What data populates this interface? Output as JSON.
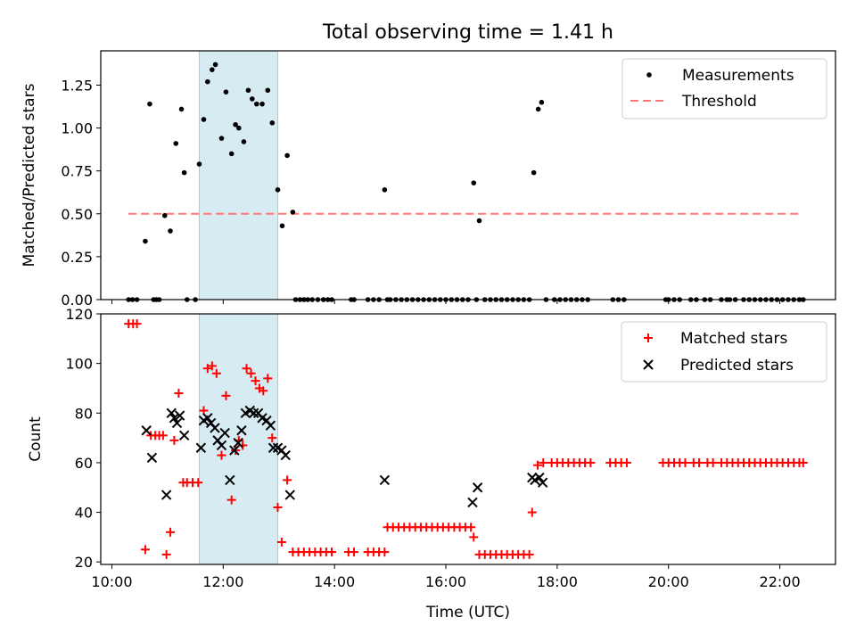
{
  "chart_data": [
    {
      "type": "scatter",
      "title": "Total observing time = 1.41 h",
      "ylabel": "Matched/Predicted stars",
      "xlabel": "",
      "x_unit": "hours UTC",
      "xlim": [
        9.8,
        23.0
      ],
      "ylim": [
        0,
        1.45
      ],
      "yticks": [
        0,
        0.25,
        0.5,
        0.75,
        1.0,
        1.25
      ],
      "ytick_labels": [
        "0.00",
        "0.25",
        "0.50",
        "0.75",
        "1.00",
        "1.25"
      ],
      "highlight_span": [
        11.57,
        12.98
      ],
      "legend_position": "top-right",
      "legend": [
        {
          "label": "Measurements",
          "marker": "dot",
          "color": "#000000"
        },
        {
          "label": "Threshold",
          "marker": "dashed-line",
          "color": "#ff7777"
        }
      ],
      "threshold": {
        "value": 0.5,
        "x_range": [
          10.3,
          22.4
        ]
      },
      "series": [
        {
          "name": "Measurements",
          "color": "#000000",
          "x": [
            10.3,
            10.37,
            10.45,
            10.6,
            10.68,
            10.75,
            10.8,
            10.85,
            10.95,
            11.05,
            11.15,
            11.25,
            11.3,
            11.35,
            11.5,
            11.57,
            11.65,
            11.72,
            11.8,
            11.86,
            11.97,
            12.05,
            12.15,
            12.22,
            12.28,
            12.37,
            12.45,
            12.52,
            12.6,
            12.7,
            12.8,
            12.88,
            12.98,
            13.06,
            13.15,
            13.25,
            13.3,
            13.38,
            13.45,
            13.52,
            13.6,
            13.7,
            13.8,
            13.88,
            13.95,
            14.3,
            14.35,
            14.6,
            14.7,
            14.8,
            14.9,
            14.95,
            15.0,
            15.1,
            15.2,
            15.3,
            15.4,
            15.5,
            15.6,
            15.7,
            15.8,
            15.9,
            16.0,
            16.1,
            16.2,
            16.3,
            16.4,
            16.5,
            16.55,
            16.6,
            16.7,
            16.8,
            16.9,
            17.0,
            17.1,
            17.2,
            17.3,
            17.4,
            17.5,
            17.58,
            17.66,
            17.72,
            17.8,
            17.95,
            18.05,
            18.15,
            18.25,
            18.35,
            18.45,
            18.55,
            19.0,
            19.1,
            19.2,
            19.95,
            20.0,
            20.1,
            20.2,
            20.4,
            20.5,
            20.65,
            20.75,
            20.95,
            21.05,
            21.1,
            21.2,
            21.35,
            21.45,
            21.55,
            21.65,
            21.75,
            21.85,
            21.95,
            22.05,
            22.15,
            22.25,
            22.35,
            22.42
          ],
          "y": [
            0,
            0,
            0,
            0.34,
            1.14,
            0,
            0,
            0,
            0.49,
            0.4,
            0.91,
            1.11,
            0.74,
            0,
            0,
            0.79,
            1.05,
            1.27,
            1.34,
            1.37,
            0.94,
            1.21,
            0.85,
            1.02,
            1.0,
            0.92,
            1.22,
            1.17,
            1.14,
            1.14,
            1.22,
            1.03,
            0.64,
            0.43,
            0.84,
            0.51,
            0,
            0,
            0,
            0,
            0,
            0,
            0,
            0,
            0,
            0,
            0,
            0,
            0,
            0,
            0.64,
            0,
            0,
            0,
            0,
            0,
            0,
            0,
            0,
            0,
            0,
            0,
            0,
            0,
            0,
            0,
            0,
            0.68,
            0,
            0.46,
            0,
            0,
            0,
            0,
            0,
            0,
            0,
            0,
            0,
            0.74,
            1.11,
            1.15,
            0,
            0,
            0,
            0,
            0,
            0,
            0,
            0,
            0,
            0,
            0,
            0,
            0,
            0,
            0,
            0,
            0,
            0,
            0,
            0,
            0,
            0,
            0,
            0,
            0,
            0,
            0,
            0,
            0,
            0,
            0,
            0,
            0,
            0,
            0
          ]
        }
      ]
    },
    {
      "type": "scatter",
      "title": "",
      "ylabel": "Count",
      "xlabel": "Time (UTC)",
      "x_unit": "hours UTC",
      "xlim": [
        9.8,
        23.0
      ],
      "ylim": [
        19,
        120
      ],
      "yticks": [
        20,
        40,
        60,
        80,
        100,
        120
      ],
      "ytick_labels": [
        "20",
        "40",
        "60",
        "80",
        "100",
        "120"
      ],
      "xticks": [
        10,
        12,
        14,
        16,
        18,
        20,
        22
      ],
      "xtick_labels": [
        "10:00",
        "12:00",
        "14:00",
        "16:00",
        "18:00",
        "20:00",
        "22:00"
      ],
      "highlight_span": [
        11.57,
        12.98
      ],
      "legend_position": "top-right",
      "legend": [
        {
          "label": "Matched stars",
          "marker": "plus",
          "color": "#ff0000"
        },
        {
          "label": "Predicted stars",
          "marker": "cross",
          "color": "#000000"
        }
      ],
      "series": [
        {
          "name": "Matched stars",
          "color": "#ff0000",
          "x": [
            10.3,
            10.38,
            10.45,
            10.6,
            10.7,
            10.78,
            10.85,
            10.92,
            10.98,
            11.05,
            11.12,
            11.2,
            11.28,
            11.35,
            11.45,
            11.55,
            11.65,
            11.72,
            11.8,
            11.88,
            11.97,
            12.05,
            12.15,
            12.22,
            12.28,
            12.35,
            12.42,
            12.5,
            12.58,
            12.65,
            12.72,
            12.8,
            12.88,
            12.98,
            13.05,
            13.15,
            13.25,
            13.35,
            13.45,
            13.55,
            13.65,
            13.75,
            13.85,
            13.95,
            14.25,
            14.35,
            14.6,
            14.7,
            14.8,
            14.9,
            14.95,
            15.05,
            15.15,
            15.25,
            15.35,
            15.45,
            15.55,
            15.65,
            15.75,
            15.85,
            15.95,
            16.05,
            16.15,
            16.25,
            16.35,
            16.45,
            16.5,
            16.6,
            16.7,
            16.8,
            16.9,
            17.0,
            17.1,
            17.2,
            17.3,
            17.4,
            17.5,
            17.55,
            17.65,
            17.75,
            17.9,
            18.0,
            18.1,
            18.2,
            18.3,
            18.4,
            18.5,
            18.6,
            18.95,
            19.05,
            19.15,
            19.25,
            19.9,
            20.0,
            20.1,
            20.2,
            20.3,
            20.45,
            20.55,
            20.7,
            20.8,
            20.95,
            21.05,
            21.15,
            21.25,
            21.35,
            21.45,
            21.55,
            21.65,
            21.75,
            21.85,
            21.95,
            22.05,
            22.15,
            22.25,
            22.35,
            22.42
          ],
          "y": [
            116,
            116,
            116,
            25,
            71,
            71,
            71,
            71,
            23,
            32,
            69,
            88,
            52,
            52,
            52,
            52,
            81,
            98,
            99,
            96,
            63,
            87,
            45,
            65,
            69,
            67,
            98,
            96,
            93,
            90,
            89,
            94,
            70,
            42,
            28,
            53,
            24,
            24,
            24,
            24,
            24,
            24,
            24,
            24,
            24,
            24,
            24,
            24,
            24,
            24,
            34,
            34,
            34,
            34,
            34,
            34,
            34,
            34,
            34,
            34,
            34,
            34,
            34,
            34,
            34,
            34,
            30,
            23,
            23,
            23,
            23,
            23,
            23,
            23,
            23,
            23,
            23,
            40,
            59,
            60,
            60,
            60,
            60,
            60,
            60,
            60,
            60,
            60,
            60,
            60,
            60,
            60,
            60,
            60,
            60,
            60,
            60,
            60,
            60,
            60,
            60,
            60,
            60,
            60,
            60,
            60,
            60,
            60,
            60,
            60,
            60,
            60,
            60,
            60,
            60,
            60,
            60
          ]
        },
        {
          "name": "Predicted stars",
          "color": "#000000",
          "x": [
            10.62,
            10.72,
            10.98,
            11.07,
            11.12,
            11.17,
            11.22,
            11.3,
            11.6,
            11.65,
            11.72,
            11.78,
            11.85,
            11.9,
            11.97,
            12.03,
            12.12,
            12.2,
            12.27,
            12.33,
            12.4,
            12.48,
            12.55,
            12.63,
            12.7,
            12.78,
            12.85,
            12.9,
            12.98,
            13.05,
            13.12,
            13.2,
            14.9,
            16.48,
            16.57,
            17.55,
            17.6,
            17.68,
            17.74
          ],
          "y": [
            73,
            62,
            47,
            80,
            78,
            76,
            79,
            71,
            66,
            77,
            78,
            76,
            74,
            69,
            67,
            72,
            53,
            65,
            68,
            73,
            80,
            81,
            80,
            80,
            78,
            77,
            75,
            66,
            66,
            65,
            63,
            47,
            53,
            44,
            50,
            54,
            53,
            54,
            52
          ]
        }
      ]
    }
  ]
}
